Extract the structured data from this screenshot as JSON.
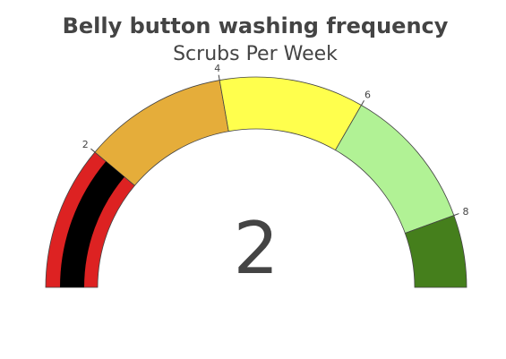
{
  "chart_data": {
    "type": "gauge",
    "title": "Belly button washing frequency",
    "subtitle": "Scrubs Per Week",
    "value": 2,
    "value_label": "2",
    "range": [
      0,
      9
    ],
    "ticks": [
      {
        "value": 2,
        "label": "2"
      },
      {
        "value": 4,
        "label": "4"
      },
      {
        "value": 6,
        "label": "6"
      },
      {
        "value": 8,
        "label": "8"
      }
    ],
    "steps": [
      {
        "range": [
          0,
          2
        ],
        "color": "#dd2222"
      },
      {
        "range": [
          2,
          4
        ],
        "color": "#e5ad3a"
      },
      {
        "range": [
          4,
          6
        ],
        "color": "#ffff4d"
      },
      {
        "range": [
          6,
          8
        ],
        "color": "#b1f295"
      },
      {
        "range": [
          8,
          9
        ],
        "color": "#457f1c"
      }
    ],
    "bar_color": "#000000",
    "outline_color": "#444444"
  }
}
